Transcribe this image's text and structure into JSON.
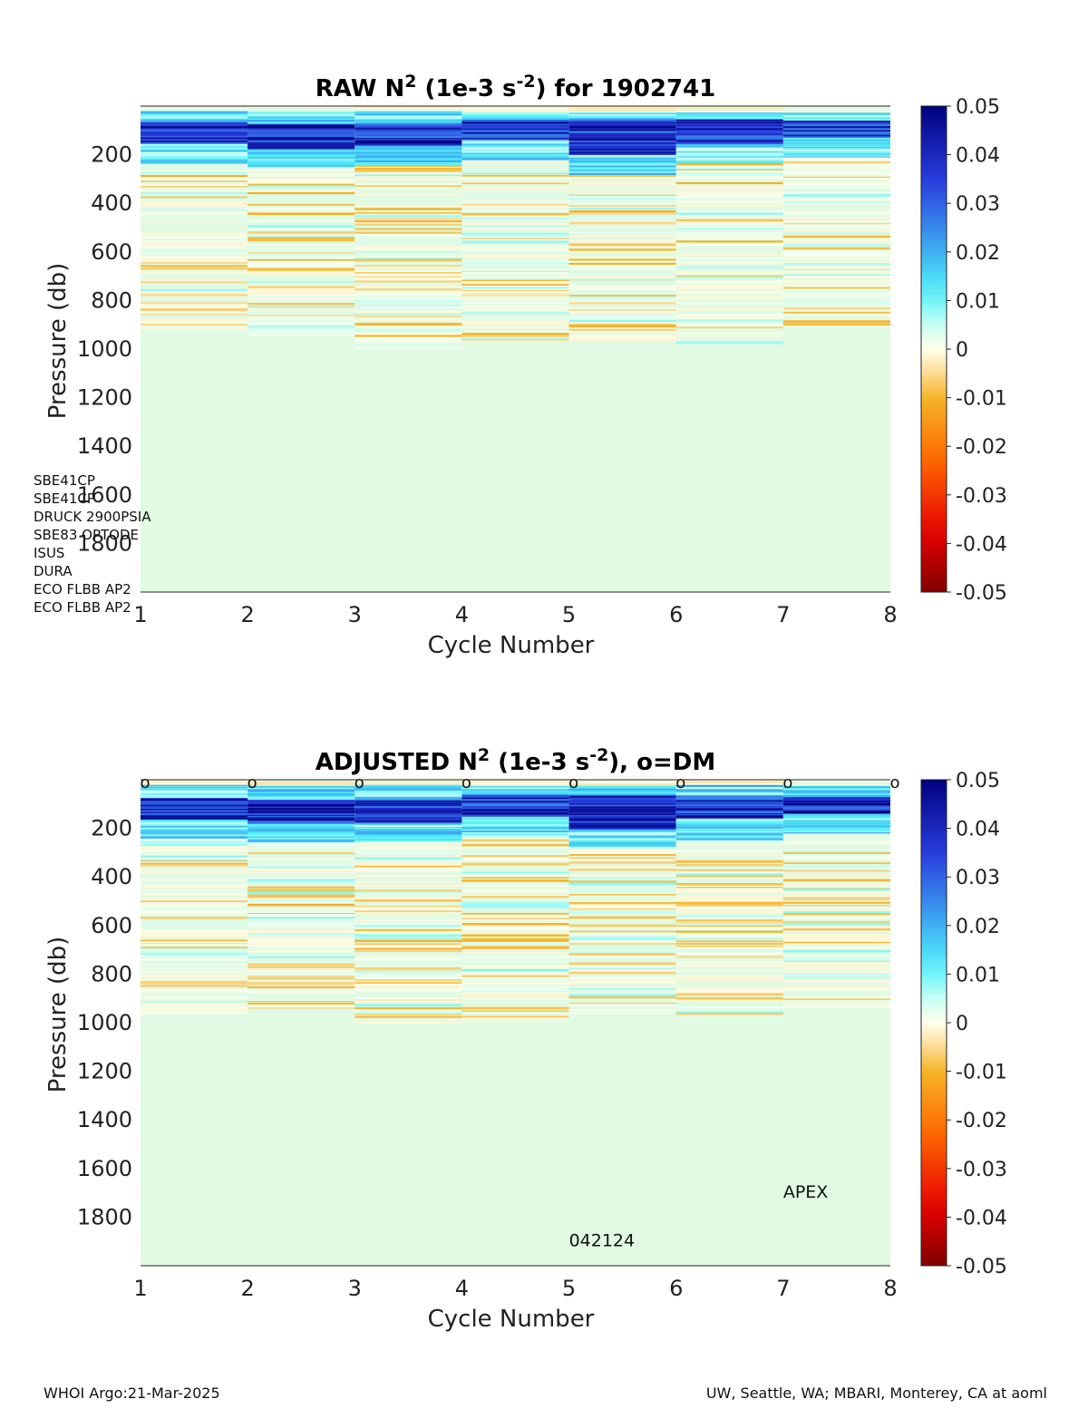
{
  "chart_data": [
    {
      "type": "heatmap",
      "title": "RAW N2 (1e-3 s-2) for 1902741",
      "title_parts": {
        "prefix": "RAW N",
        "sup1": "2",
        "mid": " (1e-3 s",
        "sup2": "-2",
        "suffix": ") for 1902741"
      },
      "xlabel": "Cycle Number",
      "ylabel": "Pressure (db)",
      "xlim": [
        1,
        8
      ],
      "ylim": [
        2000,
        0
      ],
      "x_ticks": [
        "1",
        "2",
        "3",
        "4",
        "5",
        "6",
        "7",
        "8"
      ],
      "y_ticks": [
        "200",
        "400",
        "600",
        "800",
        "1000",
        "1200",
        "1400",
        "1600",
        "1800"
      ],
      "color_range": [
        -0.05,
        0.05
      ],
      "colorbar_ticks": [
        "0.05",
        "0.04",
        "0.03",
        "0.02",
        "0.01",
        "0",
        "-0.01",
        "-0.02",
        "-0.03",
        "-0.04",
        "-0.05"
      ],
      "cycles": [
        1,
        2,
        3,
        4,
        5,
        6,
        7
      ],
      "profile_max_pressure": [
        920,
        940,
        1000,
        980,
        960,
        970,
        900
      ],
      "stratified_layer_db": [
        [
          60,
          150
        ],
        [
          70,
          170
        ],
        [
          70,
          160
        ],
        [
          50,
          140
        ],
        [
          50,
          200
        ],
        [
          50,
          150
        ],
        [
          60,
          130
        ]
      ],
      "dm_markers": false
    },
    {
      "type": "heatmap",
      "title": "ADJUSTED N2 (1e-3 s-2), o=DM",
      "title_parts": {
        "prefix": "ADJUSTED N",
        "sup1": "2",
        "mid": " (1e-3 s",
        "sup2": "-2",
        "suffix": "), o=DM"
      },
      "xlabel": "Cycle Number",
      "ylabel": "Pressure (db)",
      "xlim": [
        1,
        8
      ],
      "ylim": [
        2000,
        0
      ],
      "x_ticks": [
        "1",
        "2",
        "3",
        "4",
        "5",
        "6",
        "7",
        "8"
      ],
      "y_ticks": [
        "200",
        "400",
        "600",
        "800",
        "1000",
        "1200",
        "1400",
        "1600",
        "1800"
      ],
      "color_range": [
        -0.05,
        0.05
      ],
      "colorbar_ticks": [
        "0.05",
        "0.04",
        "0.03",
        "0.02",
        "0.01",
        "0",
        "-0.01",
        "-0.02",
        "-0.03",
        "-0.04",
        "-0.05"
      ],
      "cycles": [
        1,
        2,
        3,
        4,
        5,
        6,
        7
      ],
      "profile_max_pressure": [
        960,
        940,
        1000,
        980,
        960,
        970,
        940
      ],
      "stratified_layer_db": [
        [
          70,
          160
        ],
        [
          80,
          180
        ],
        [
          80,
          170
        ],
        [
          60,
          150
        ],
        [
          60,
          200
        ],
        [
          60,
          160
        ],
        [
          70,
          140
        ]
      ],
      "dm_markers": true,
      "dm_marker_label": "o",
      "dm_cycles": [
        1,
        2,
        3,
        4,
        5,
        6,
        7,
        8
      ],
      "annotations": [
        {
          "text": "APEX"
        },
        {
          "text": "042124"
        }
      ]
    }
  ],
  "sensors": [
    "SBE41CP",
    "SBE41CP",
    "DRUCK 2900PSIA",
    "SBE83 OPTODE",
    "ISUS",
    "DURA",
    "ECO FLBB AP2",
    "ECO FLBB AP2"
  ],
  "footer": {
    "left": "WHOI Argo:21-Mar-2025",
    "right": "UW, Seattle, WA; MBARI, Monterey, CA at aoml"
  },
  "colors": {
    "background_field": "#e1fae4",
    "strong_positive": "#0000a0",
    "negative": "#f0a020"
  }
}
